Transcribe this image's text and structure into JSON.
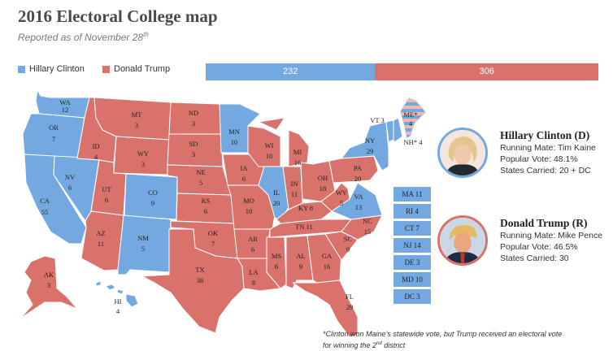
{
  "header": {
    "title": "2016 Electoral College map",
    "subtitle": "Reported as of November 28",
    "subtitle_sup": "th"
  },
  "colors": {
    "clinton": "#73a9e0",
    "trump": "#d9726b",
    "trump_light": "#efb8b4",
    "border": "#ffffff"
  },
  "legend": {
    "clinton": "Hillary Clinton",
    "trump": "Donald Trump"
  },
  "tally": {
    "clinton": 232,
    "trump": 306,
    "clinton_label": "232",
    "trump_label": "306"
  },
  "states": [
    {
      "code": "WA",
      "votes": "12",
      "winner": "D"
    },
    {
      "code": "OR",
      "votes": "7",
      "winner": "D"
    },
    {
      "code": "CA",
      "votes": "55",
      "winner": "D"
    },
    {
      "code": "NV",
      "votes": "6",
      "winner": "D"
    },
    {
      "code": "ID",
      "votes": "4",
      "winner": "R"
    },
    {
      "code": "MT",
      "votes": "3",
      "winner": "R"
    },
    {
      "code": "WY",
      "votes": "3",
      "winner": "R"
    },
    {
      "code": "UT",
      "votes": "6",
      "winner": "R"
    },
    {
      "code": "AZ",
      "votes": "11",
      "winner": "R"
    },
    {
      "code": "CO",
      "votes": "9",
      "winner": "D"
    },
    {
      "code": "NM",
      "votes": "5",
      "winner": "D"
    },
    {
      "code": "ND",
      "votes": "3",
      "winner": "R"
    },
    {
      "code": "SD",
      "votes": "3",
      "winner": "R"
    },
    {
      "code": "NE",
      "votes": "5",
      "winner": "R"
    },
    {
      "code": "KS",
      "votes": "6",
      "winner": "R"
    },
    {
      "code": "OK",
      "votes": "7",
      "winner": "R"
    },
    {
      "code": "TX",
      "votes": "38",
      "winner": "R"
    },
    {
      "code": "MN",
      "votes": "10",
      "winner": "D"
    },
    {
      "code": "IA",
      "votes": "6",
      "winner": "R"
    },
    {
      "code": "MO",
      "votes": "10",
      "winner": "R"
    },
    {
      "code": "AR",
      "votes": "6",
      "winner": "R"
    },
    {
      "code": "LA",
      "votes": "8",
      "winner": "R"
    },
    {
      "code": "WI",
      "votes": "10",
      "winner": "R"
    },
    {
      "code": "IL",
      "votes": "20",
      "winner": "D"
    },
    {
      "code": "MI",
      "votes": "16",
      "winner": "R"
    },
    {
      "code": "IN",
      "votes": "11",
      "winner": "R"
    },
    {
      "code": "OH",
      "votes": "18",
      "winner": "R"
    },
    {
      "code": "KY",
      "votes": "8",
      "winner": "R"
    },
    {
      "code": "TN",
      "votes": "11",
      "winner": "R"
    },
    {
      "code": "MS",
      "votes": "6",
      "winner": "R"
    },
    {
      "code": "AL",
      "votes": "9",
      "winner": "R"
    },
    {
      "code": "GA",
      "votes": "16",
      "winner": "R"
    },
    {
      "code": "FL",
      "votes": "29",
      "winner": "R"
    },
    {
      "code": "SC",
      "votes": "9",
      "winner": "R"
    },
    {
      "code": "NC",
      "votes": "15",
      "winner": "R"
    },
    {
      "code": "VA",
      "votes": "13",
      "winner": "D"
    },
    {
      "code": "WV",
      "votes": "5",
      "winner": "R"
    },
    {
      "code": "PA",
      "votes": "20",
      "winner": "R"
    },
    {
      "code": "NY",
      "votes": "29",
      "winner": "D"
    },
    {
      "code": "VT",
      "votes": "3",
      "winner": "D"
    },
    {
      "code": "NH",
      "votes": "4",
      "winner": "D"
    },
    {
      "code": "ME",
      "votes": "4",
      "winner": "D"
    },
    {
      "code": "AK",
      "votes": "3",
      "winner": "R"
    },
    {
      "code": "HI",
      "votes": "4",
      "winner": "D"
    }
  ],
  "state_label_overrides": {
    "ME": "ME*",
    "NH": "NH*"
  },
  "small_states": [
    {
      "code": "MA",
      "votes": "11",
      "winner": "D"
    },
    {
      "code": "RI",
      "votes": "4",
      "winner": "D"
    },
    {
      "code": "CT",
      "votes": "7",
      "winner": "D"
    },
    {
      "code": "NJ",
      "votes": "14",
      "winner": "D"
    },
    {
      "code": "DE",
      "votes": "3",
      "winner": "D"
    },
    {
      "code": "MD",
      "votes": "10",
      "winner": "D"
    },
    {
      "code": "DC",
      "votes": "3",
      "winner": "D"
    }
  ],
  "candidates": {
    "clinton": {
      "name": "Hillary Clinton (D)",
      "running_mate": "Running Mate: Tim Kaine",
      "popular_vote": "Popular Vote: 48.1%",
      "states_carried": "States Carried: 20 + DC"
    },
    "trump": {
      "name": "Donald Trump (R)",
      "running_mate": "Running Mate: Mike Pence",
      "popular_vote": "Popular Vote: 46.5%",
      "states_carried": "States Carried: 30"
    }
  },
  "footnote": {
    "line1": "*Clinton won Maine’s statewide vote, but Trump received an electoral vote",
    "line2_before": "for winning the 2",
    "line2_sup": "nd",
    "line2_after": " district"
  }
}
